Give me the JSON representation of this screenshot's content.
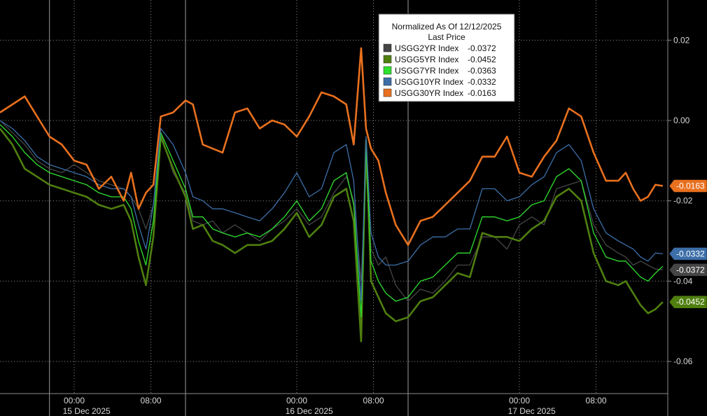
{
  "chart_data": {
    "type": "line",
    "title": "",
    "legend": {
      "title_line1": "Normalized As Of 12/12/2025",
      "title_line2": "Last Price",
      "position": "top-center"
    },
    "xlabel": "",
    "ylabel": "",
    "ylim": [
      -0.068,
      0.03
    ],
    "y_ticks": [
      0.02,
      0.0,
      -0.02,
      -0.04,
      -0.06
    ],
    "y_tick_labels": [
      "0.02",
      "0.00",
      "-0.02",
      "-0.04",
      "-0.06"
    ],
    "x_ticks": [
      {
        "label": "00:00",
        "x": 1.0
      },
      {
        "label": "08:00",
        "x": 4.1
      },
      {
        "label": "00:00",
        "x": 10.0
      },
      {
        "label": "08:00",
        "x": 13.1
      },
      {
        "label": "00:00",
        "x": 19.0
      },
      {
        "label": "08:00",
        "x": 22.1
      }
    ],
    "x_date_labels": [
      {
        "label": "15 Dec 2025",
        "x": 1.5
      },
      {
        "label": "16 Dec 2025",
        "x": 10.5
      },
      {
        "label": "17 Dec 2025",
        "x": 19.5
      }
    ],
    "day_separators": [
      0.0,
      5.5,
      14.5
    ],
    "xlim": [
      -2.0,
      25.0
    ],
    "grid": true,
    "background": "#000000",
    "grid_color": "#8c8c8c",
    "series": [
      {
        "name": "USGG2YR Index",
        "legend_value": "-0.0372",
        "last_label": "-0.0372",
        "color": "#454545",
        "x": [
          -2.0,
          -1.5,
          -1.0,
          -0.5,
          0.0,
          0.5,
          1.0,
          1.5,
          2.0,
          2.5,
          3.0,
          3.3,
          3.6,
          3.9,
          4.2,
          4.5,
          5.0,
          5.5,
          5.8,
          6.2,
          6.6,
          7.0,
          7.5,
          8.0,
          8.5,
          9.0,
          9.5,
          10.0,
          10.5,
          11.0,
          11.5,
          12.0,
          12.3,
          12.6,
          12.8,
          13.0,
          13.3,
          13.6,
          14.0,
          14.5,
          15.0,
          15.5,
          16.0,
          16.5,
          17.0,
          17.5,
          18.0,
          18.5,
          19.0,
          19.5,
          20.0,
          20.5,
          21.0,
          21.5,
          22.0,
          22.5,
          23.0,
          23.3,
          23.6,
          23.9,
          24.2,
          24.5,
          24.8
        ],
        "values": [
          0.0,
          -0.003,
          -0.006,
          -0.01,
          -0.012,
          -0.013,
          -0.011,
          -0.013,
          -0.015,
          -0.016,
          -0.017,
          -0.019,
          -0.022,
          -0.027,
          -0.021,
          -0.003,
          -0.013,
          -0.018,
          -0.025,
          -0.026,
          -0.025,
          -0.028,
          -0.026,
          -0.028,
          -0.03,
          -0.027,
          -0.025,
          -0.022,
          -0.026,
          -0.024,
          -0.018,
          -0.014,
          -0.02,
          -0.04,
          -0.012,
          -0.032,
          -0.036,
          -0.034,
          -0.041,
          -0.045,
          -0.042,
          -0.043,
          -0.04,
          -0.036,
          -0.036,
          -0.029,
          -0.029,
          -0.032,
          -0.026,
          -0.024,
          -0.026,
          -0.017,
          -0.016,
          -0.015,
          -0.026,
          -0.031,
          -0.033,
          -0.034,
          -0.036,
          -0.035,
          -0.036,
          -0.037,
          -0.0372
        ]
      },
      {
        "name": "USGG5YR Index",
        "legend_value": "-0.0452",
        "last_label": "-0.0452",
        "color": "#4f7f0f",
        "x": [
          -2.0,
          -1.5,
          -1.0,
          -0.5,
          0.0,
          0.5,
          1.0,
          1.5,
          2.0,
          2.5,
          3.0,
          3.3,
          3.6,
          3.9,
          4.2,
          4.5,
          5.0,
          5.5,
          5.8,
          6.2,
          6.6,
          7.0,
          7.5,
          8.0,
          8.5,
          9.0,
          9.5,
          10.0,
          10.5,
          11.0,
          11.5,
          12.0,
          12.3,
          12.6,
          12.8,
          13.0,
          13.3,
          13.6,
          14.0,
          14.5,
          15.0,
          15.5,
          16.0,
          16.5,
          17.0,
          17.5,
          18.0,
          18.5,
          19.0,
          19.5,
          20.0,
          20.5,
          21.0,
          21.5,
          22.0,
          22.5,
          23.0,
          23.3,
          23.6,
          23.9,
          24.2,
          24.5,
          24.8
        ],
        "values": [
          -0.002,
          -0.006,
          -0.012,
          -0.014,
          -0.016,
          -0.017,
          -0.018,
          -0.019,
          -0.021,
          -0.022,
          -0.021,
          -0.025,
          -0.034,
          -0.041,
          -0.029,
          -0.004,
          -0.012,
          -0.019,
          -0.027,
          -0.026,
          -0.03,
          -0.031,
          -0.033,
          -0.031,
          -0.031,
          -0.03,
          -0.027,
          -0.023,
          -0.029,
          -0.026,
          -0.019,
          -0.017,
          -0.025,
          -0.055,
          -0.005,
          -0.04,
          -0.044,
          -0.048,
          -0.05,
          -0.049,
          -0.045,
          -0.044,
          -0.041,
          -0.038,
          -0.039,
          -0.028,
          -0.029,
          -0.029,
          -0.03,
          -0.027,
          -0.025,
          -0.019,
          -0.017,
          -0.02,
          -0.033,
          -0.04,
          -0.041,
          -0.04,
          -0.043,
          -0.046,
          -0.048,
          -0.047,
          -0.0452
        ]
      },
      {
        "name": "USGG7YR Index",
        "legend_value": "-0.0363",
        "last_label": "",
        "color": "#2fe02f",
        "x": [
          -2.0,
          -1.5,
          -1.0,
          -0.5,
          0.0,
          0.5,
          1.0,
          1.5,
          2.0,
          2.5,
          3.0,
          3.3,
          3.6,
          3.9,
          4.2,
          4.5,
          5.0,
          5.5,
          5.8,
          6.2,
          6.6,
          7.0,
          7.5,
          8.0,
          8.5,
          9.0,
          9.5,
          10.0,
          10.5,
          11.0,
          11.5,
          12.0,
          12.3,
          12.6,
          12.8,
          13.0,
          13.3,
          13.6,
          14.0,
          14.5,
          15.0,
          15.5,
          16.0,
          16.5,
          17.0,
          17.5,
          18.0,
          18.5,
          19.0,
          19.5,
          20.0,
          20.5,
          21.0,
          21.5,
          22.0,
          22.5,
          23.0,
          23.3,
          23.6,
          23.9,
          24.2,
          24.5,
          24.8
        ],
        "values": [
          -0.001,
          -0.004,
          -0.008,
          -0.011,
          -0.013,
          -0.014,
          -0.015,
          -0.016,
          -0.018,
          -0.019,
          -0.019,
          -0.022,
          -0.03,
          -0.036,
          -0.025,
          -0.003,
          -0.01,
          -0.017,
          -0.024,
          -0.024,
          -0.027,
          -0.028,
          -0.029,
          -0.028,
          -0.029,
          -0.027,
          -0.024,
          -0.02,
          -0.025,
          -0.022,
          -0.015,
          -0.013,
          -0.021,
          -0.049,
          -0.006,
          -0.035,
          -0.04,
          -0.043,
          -0.045,
          -0.044,
          -0.04,
          -0.039,
          -0.036,
          -0.033,
          -0.033,
          -0.024,
          -0.024,
          -0.025,
          -0.024,
          -0.021,
          -0.02,
          -0.014,
          -0.012,
          -0.015,
          -0.028,
          -0.034,
          -0.035,
          -0.035,
          -0.037,
          -0.039,
          -0.04,
          -0.038,
          -0.0363
        ]
      },
      {
        "name": "USGG10YR Index",
        "legend_value": "-0.0332",
        "last_label": "-0.0332",
        "color": "#3c6ea8",
        "x": [
          -2.0,
          -1.5,
          -1.0,
          -0.5,
          0.0,
          0.5,
          1.0,
          1.5,
          2.0,
          2.5,
          3.0,
          3.3,
          3.6,
          3.9,
          4.2,
          4.5,
          5.0,
          5.5,
          5.8,
          6.2,
          6.6,
          7.0,
          7.5,
          8.0,
          8.5,
          9.0,
          9.5,
          10.0,
          10.5,
          11.0,
          11.5,
          12.0,
          12.3,
          12.6,
          12.8,
          13.0,
          13.3,
          13.6,
          14.0,
          14.5,
          15.0,
          15.5,
          16.0,
          16.5,
          17.0,
          17.5,
          18.0,
          18.5,
          19.0,
          19.5,
          20.0,
          20.5,
          21.0,
          21.5,
          22.0,
          22.5,
          23.0,
          23.3,
          23.6,
          23.9,
          24.2,
          24.5,
          24.8
        ],
        "values": [
          0.0,
          -0.002,
          -0.005,
          -0.009,
          -0.011,
          -0.012,
          -0.013,
          -0.014,
          -0.016,
          -0.017,
          -0.017,
          -0.019,
          -0.026,
          -0.032,
          -0.021,
          -0.002,
          -0.006,
          -0.013,
          -0.019,
          -0.02,
          -0.022,
          -0.022,
          -0.023,
          -0.024,
          -0.025,
          -0.022,
          -0.018,
          -0.013,
          -0.019,
          -0.017,
          -0.008,
          -0.006,
          -0.015,
          -0.045,
          -0.004,
          -0.028,
          -0.034,
          -0.036,
          -0.036,
          -0.035,
          -0.031,
          -0.029,
          -0.029,
          -0.027,
          -0.027,
          -0.017,
          -0.017,
          -0.02,
          -0.019,
          -0.016,
          -0.014,
          -0.008,
          -0.006,
          -0.01,
          -0.022,
          -0.028,
          -0.03,
          -0.031,
          -0.032,
          -0.034,
          -0.035,
          -0.033,
          -0.0332
        ]
      },
      {
        "name": "USGG30YR Index",
        "legend_value": "-0.0163",
        "last_label": "-0.0163",
        "color": "#e8701e",
        "x": [
          -2.0,
          -1.5,
          -1.0,
          -0.5,
          0.0,
          0.5,
          1.0,
          1.5,
          2.0,
          2.5,
          3.0,
          3.3,
          3.6,
          3.9,
          4.2,
          4.5,
          5.0,
          5.5,
          5.8,
          6.2,
          6.6,
          7.0,
          7.5,
          8.0,
          8.5,
          9.0,
          9.5,
          10.0,
          10.5,
          11.0,
          11.5,
          12.0,
          12.3,
          12.6,
          12.8,
          13.0,
          13.3,
          13.6,
          14.0,
          14.5,
          15.0,
          15.5,
          16.0,
          16.5,
          17.0,
          17.5,
          18.0,
          18.5,
          19.0,
          19.5,
          20.0,
          20.5,
          21.0,
          21.5,
          22.0,
          22.5,
          23.0,
          23.3,
          23.6,
          23.9,
          24.2,
          24.5,
          24.8
        ],
        "values": [
          0.002,
          0.004,
          0.006,
          0.001,
          -0.004,
          -0.006,
          -0.01,
          -0.011,
          -0.017,
          -0.014,
          -0.02,
          -0.013,
          -0.022,
          -0.018,
          -0.016,
          0.001,
          0.002,
          0.005,
          0.004,
          -0.006,
          -0.007,
          -0.008,
          0.002,
          0.003,
          -0.002,
          0.0,
          -0.001,
          -0.004,
          0.001,
          0.007,
          0.006,
          0.004,
          -0.006,
          0.018,
          -0.002,
          -0.007,
          -0.01,
          -0.018,
          -0.026,
          -0.031,
          -0.025,
          -0.024,
          -0.021,
          -0.018,
          -0.015,
          -0.009,
          -0.009,
          -0.004,
          -0.013,
          -0.014,
          -0.009,
          -0.005,
          0.003,
          0.001,
          -0.008,
          -0.015,
          -0.015,
          -0.013,
          -0.017,
          -0.02,
          -0.019,
          -0.016,
          -0.0163
        ]
      }
    ]
  }
}
